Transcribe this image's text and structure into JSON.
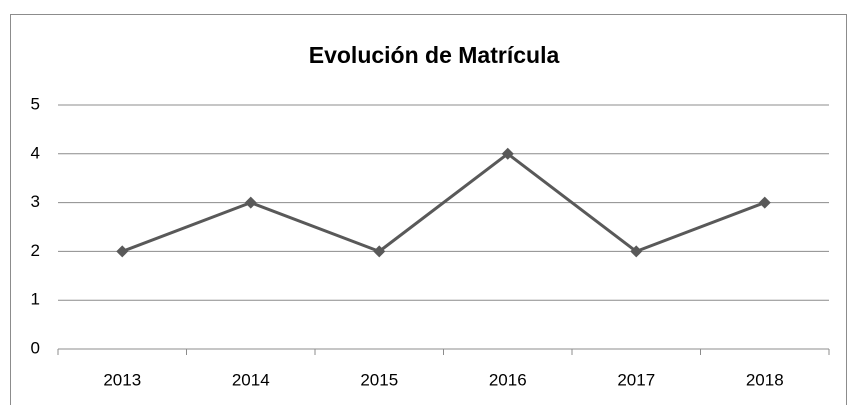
{
  "chart_data": {
    "type": "line",
    "title": "Evolución de Matrícula",
    "categories": [
      "2013",
      "2014",
      "2015",
      "2016",
      "2017",
      "2018"
    ],
    "values": [
      2,
      3,
      2,
      4,
      2,
      3
    ],
    "color": "#595959",
    "ylim": [
      0,
      5
    ],
    "yticks": [
      0,
      1,
      2,
      3,
      4,
      5
    ],
    "grid": true
  }
}
